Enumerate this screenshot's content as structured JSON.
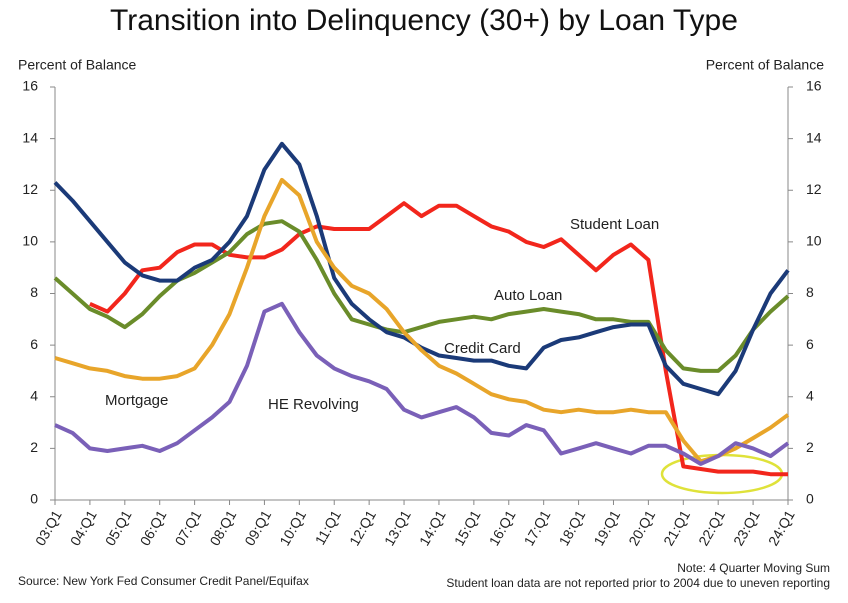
{
  "chart_data": {
    "type": "line",
    "title": "Transition into Delinquency (30+) by Loan Type",
    "y_label": "Percent of Balance",
    "y2_label": "Percent of Balance",
    "source": "Source: New York Fed Consumer Credit Panel/Equifax",
    "notes": [
      "Note: 4 Quarter Moving Sum",
      "Student loan data are not reported prior to 2004 due to uneven reporting"
    ],
    "categories": [
      "03:Q1",
      null,
      "04:Q1",
      null,
      "05:Q1",
      null,
      "06:Q1",
      null,
      "07:Q1",
      null,
      "08:Q1",
      null,
      "09:Q1",
      null,
      "10:Q1",
      null,
      "11:Q1",
      null,
      "12:Q1",
      null,
      "13:Q1",
      null,
      "14:Q1",
      null,
      "15:Q1",
      null,
      "16:Q1",
      null,
      "17:Q1",
      null,
      "18:Q1",
      null,
      "19:Q1",
      null,
      "20:Q1",
      null,
      "21:Q1",
      null,
      "22:Q1",
      null,
      "23:Q1",
      null,
      "24:Q1"
    ],
    "ylim": [
      0,
      16
    ],
    "yticks": [
      0,
      2,
      4,
      6,
      8,
      10,
      12,
      14,
      16
    ],
    "y2lim": [
      0,
      16
    ],
    "y2ticks": [
      0,
      2,
      4,
      6,
      8,
      10,
      12,
      14,
      16
    ],
    "series": [
      {
        "name": "Student Loan",
        "color": "#f2261c",
        "values": [
          null,
          null,
          7.6,
          7.3,
          8.0,
          8.9,
          9.0,
          9.6,
          9.9,
          9.9,
          9.5,
          9.4,
          9.4,
          9.7,
          10.3,
          10.6,
          10.5,
          10.5,
          10.5,
          11.0,
          11.5,
          11.0,
          11.4,
          11.4,
          11.0,
          10.6,
          10.4,
          10.0,
          9.8,
          10.1,
          9.5,
          8.9,
          9.5,
          9.9,
          9.3,
          5.0,
          1.3,
          1.2,
          1.1,
          1.1,
          1.1,
          1.0,
          1.0
        ]
      },
      {
        "name": "Auto Loan",
        "color": "#6a8c2a",
        "values": [
          8.6,
          8.0,
          7.4,
          7.1,
          6.7,
          7.2,
          7.9,
          8.5,
          8.8,
          9.2,
          9.6,
          10.3,
          10.7,
          10.8,
          10.4,
          9.3,
          8.0,
          7.0,
          6.8,
          6.6,
          6.5,
          6.7,
          6.9,
          7.0,
          7.1,
          7.0,
          7.2,
          7.3,
          7.4,
          7.3,
          7.2,
          7.0,
          7.0,
          6.9,
          6.9,
          5.8,
          5.1,
          5.0,
          5.0,
          5.6,
          6.6,
          7.3,
          7.9
        ]
      },
      {
        "name": "Credit Card",
        "color": "#1b3a78",
        "values": [
          12.3,
          11.6,
          10.8,
          10.0,
          9.2,
          8.7,
          8.5,
          8.5,
          9.0,
          9.3,
          10.0,
          11.0,
          12.8,
          13.8,
          13.0,
          11.0,
          8.6,
          7.6,
          7.0,
          6.5,
          6.3,
          5.9,
          5.6,
          5.5,
          5.4,
          5.4,
          5.2,
          5.1,
          5.9,
          6.2,
          6.3,
          6.5,
          6.7,
          6.8,
          6.8,
          5.2,
          4.5,
          4.3,
          4.1,
          5.0,
          6.6,
          8.0,
          8.9
        ]
      },
      {
        "name": "Mortgage",
        "color": "#e8a52a",
        "values": [
          5.5,
          5.3,
          5.1,
          5.0,
          4.8,
          4.7,
          4.7,
          4.8,
          5.1,
          6.0,
          7.2,
          9.0,
          11.0,
          12.4,
          11.8,
          10.0,
          9.0,
          8.3,
          8.0,
          7.4,
          6.5,
          5.8,
          5.2,
          4.9,
          4.5,
          4.1,
          3.9,
          3.8,
          3.5,
          3.4,
          3.5,
          3.4,
          3.4,
          3.5,
          3.4,
          3.4,
          2.3,
          1.5,
          1.7,
          2.0,
          2.4,
          2.8,
          3.3
        ]
      },
      {
        "name": "HE Revolving",
        "color": "#7a60b8",
        "values": [
          2.9,
          2.6,
          2.0,
          1.9,
          2.0,
          2.1,
          1.9,
          2.2,
          2.7,
          3.2,
          3.8,
          5.2,
          7.3,
          7.6,
          6.5,
          5.6,
          5.1,
          4.8,
          4.6,
          4.3,
          3.5,
          3.2,
          3.4,
          3.6,
          3.2,
          2.6,
          2.5,
          2.9,
          2.7,
          1.8,
          2.0,
          2.2,
          2.0,
          1.8,
          2.1,
          2.1,
          1.8,
          1.4,
          1.7,
          2.2,
          2.0,
          1.7,
          2.2
        ]
      }
    ]
  }
}
